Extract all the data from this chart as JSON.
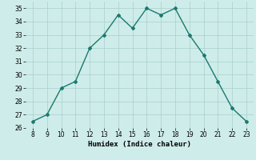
{
  "x": [
    8,
    9,
    10,
    11,
    12,
    13,
    14,
    15,
    16,
    17,
    18,
    19,
    20,
    21,
    22,
    23
  ],
  "y": [
    26.5,
    27.0,
    29.0,
    29.5,
    32.0,
    33.0,
    34.5,
    33.5,
    35.0,
    34.5,
    35.0,
    33.0,
    31.5,
    29.5,
    27.5,
    26.5
  ],
  "xlabel": "Humidex (Indice chaleur)",
  "ylim": [
    26,
    35.5
  ],
  "yticks": [
    26,
    27,
    28,
    29,
    30,
    31,
    32,
    33,
    34,
    35
  ],
  "xticks": [
    8,
    9,
    10,
    11,
    12,
    13,
    14,
    15,
    16,
    17,
    18,
    19,
    20,
    21,
    22,
    23
  ],
  "line_color": "#1a7a6e",
  "bg_color": "#ceecea",
  "grid_color": "#aed4d0",
  "text_color": "#000000"
}
